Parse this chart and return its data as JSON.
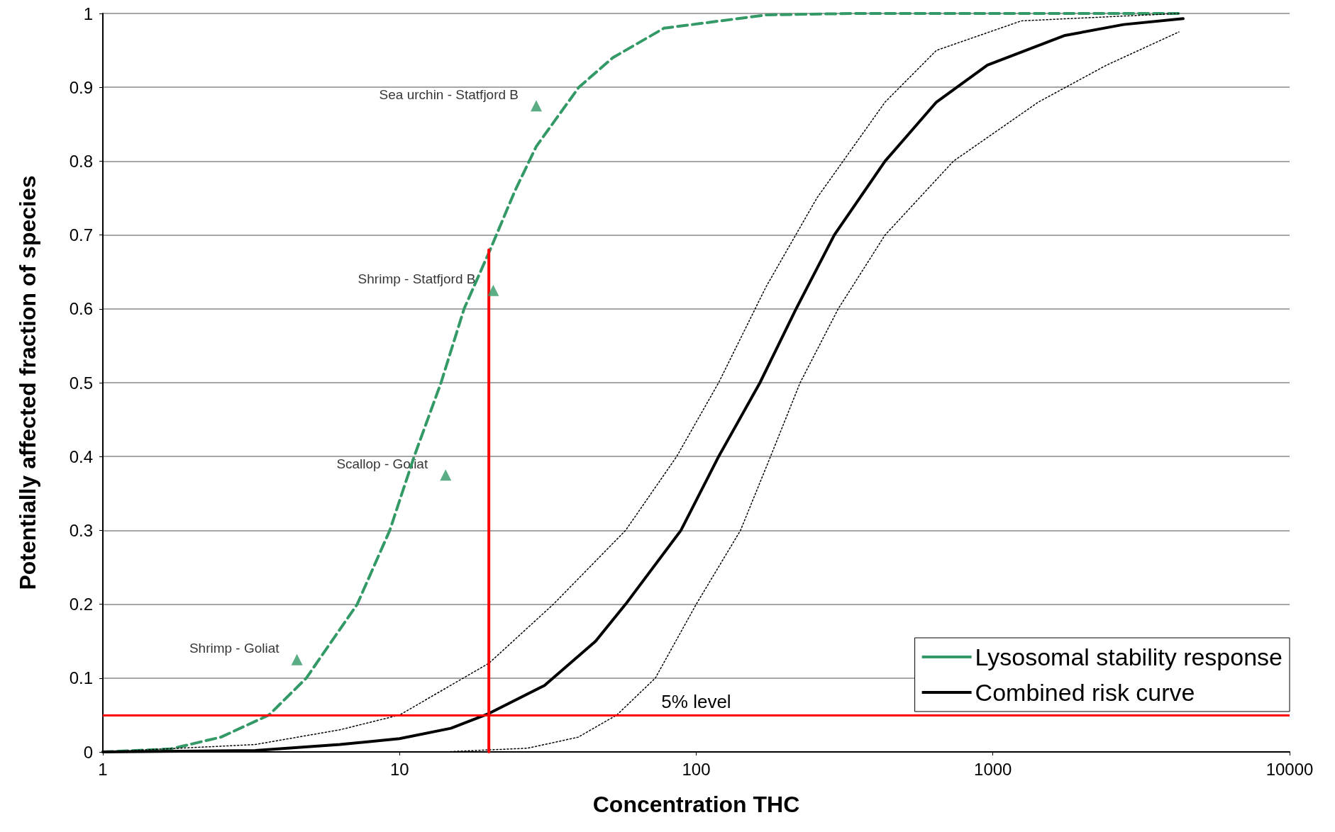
{
  "chart_data": {
    "type": "line",
    "xlabel": "Concentration THC",
    "ylabel": "Potentially affected fraction of species",
    "log": "x",
    "xlim": [
      1,
      10000
    ],
    "xticks": [
      1,
      10,
      100,
      1000,
      10000
    ],
    "ylim": [
      0,
      1
    ],
    "yticks": [
      0,
      0.1,
      0.2,
      0.3,
      0.4,
      0.5,
      0.6,
      0.7,
      0.8,
      0.9,
      1
    ],
    "grid": "y",
    "legend": "bottom right",
    "series": [
      {
        "name": "Lysosomal stability response",
        "color": "#339966",
        "line_style": "dashed",
        "marker": "none",
        "x": [
          1,
          1.69,
          2.5,
          3.63,
          4.85,
          7.2,
          9.27,
          11.2,
          13.8,
          16.5,
          20.2,
          24.5,
          28.9,
          40.2,
          52.3,
          77.8,
          172,
          333,
          4236
        ],
        "values": [
          0,
          0.004,
          0.02,
          0.05,
          0.1,
          0.2,
          0.3,
          0.4,
          0.5,
          0.6,
          0.68,
          0.76,
          0.82,
          0.9,
          0.94,
          0.98,
          0.998,
          1,
          1
        ]
      },
      {
        "name": "Combined risk curve",
        "color": "#000000",
        "line_style": "solid",
        "marker": "none",
        "x": [
          1,
          3.26,
          6.3,
          10,
          14.9,
          20,
          30.8,
          45.8,
          57.8,
          88.8,
          119,
          164,
          217,
          292,
          433,
          645,
          958,
          1738,
          2757,
          4377
        ],
        "values": [
          0,
          0.002,
          0.01,
          0.018,
          0.032,
          0.052,
          0.09,
          0.15,
          0.2,
          0.3,
          0.4,
          0.5,
          0.6,
          0.7,
          0.8,
          0.88,
          0.93,
          0.97,
          0.985,
          0.993
        ]
      },
      {
        "color": "#000000",
        "line_style": "dotted",
        "marker": "none",
        "x": [
          1,
          3.26,
          6.3,
          10,
          20,
          33,
          57.8,
          85.9,
          119,
          172,
          255,
          433,
          645,
          1248,
          4236
        ],
        "values": [
          0,
          0.01,
          0.03,
          0.05,
          0.12,
          0.2,
          0.3,
          0.4,
          0.5,
          0.63,
          0.75,
          0.88,
          0.95,
          0.99,
          1
        ]
      },
      {
        "color": "#000000",
        "line_style": "dotted",
        "marker": "none",
        "x": [
          1,
          14,
          27,
          40,
          54,
          72.8,
          100,
          141,
          178,
          224,
          301,
          433,
          736,
          1423,
          2415,
          4236
        ],
        "values": [
          0,
          0,
          0.005,
          0.02,
          0.05,
          0.1,
          0.2,
          0.3,
          0.4,
          0.5,
          0.6,
          0.7,
          0.8,
          0.88,
          0.93,
          0.975
        ]
      },
      {
        "color": "#ff0000",
        "line_style": "solid",
        "marker": "none",
        "x": [
          20,
          20
        ],
        "values": [
          0,
          0.68
        ]
      },
      {
        "type": "scatter",
        "color": "#339966",
        "marker": "triangle",
        "x": [
          4.51,
          14.3,
          20.7,
          28.9
        ],
        "values": [
          0.125,
          0.375,
          0.625,
          0.875
        ]
      }
    ],
    "ref_lines": [
      {
        "axis": "y",
        "value": 0.05,
        "label": "5% level",
        "color": "#ff0000"
      }
    ],
    "annotations": [
      {
        "text": "Shrimp - Goliat",
        "x": 4.51,
        "y": 0.125
      },
      {
        "text": "Scallop - Goliat",
        "x": 14.3,
        "y": 0.375
      },
      {
        "text": "Shrimp - Statfjord B",
        "x": 20.7,
        "y": 0.625
      },
      {
        "text": "Sea urchin - Statfjord B",
        "x": 28.9,
        "y": 0.875
      }
    ]
  }
}
